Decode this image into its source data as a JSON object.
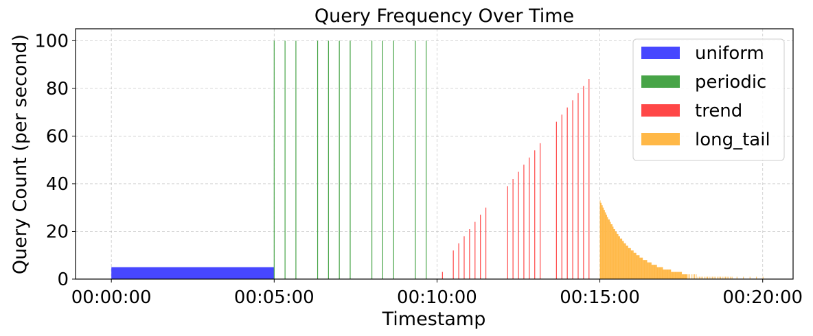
{
  "chart_data": {
    "type": "bar",
    "title": "Query Frequency Over Time",
    "xlabel": "Timestamp",
    "ylabel": "Query Count (per second)",
    "xlim": [
      "23:58:54",
      "00:20:56"
    ],
    "ylim": [
      0,
      105
    ],
    "x_ticks": [
      "00:00:00",
      "00:05:00",
      "00:10:00",
      "00:15:00",
      "00:20:00"
    ],
    "y_ticks": [
      0,
      20,
      40,
      60,
      80,
      100
    ],
    "grid": true,
    "legend_position": "top-right",
    "series": [
      {
        "name": "uniform",
        "color": "#4747ff",
        "range": [
          "00:00:00",
          "00:05:00"
        ],
        "value": 5
      },
      {
        "name": "periodic",
        "color": "#47a447",
        "points": [
          {
            "t": "00:05:00",
            "v": 100
          },
          {
            "t": "00:05:20",
            "v": 100
          },
          {
            "t": "00:05:40",
            "v": 100
          },
          {
            "t": "00:06:20",
            "v": 100
          },
          {
            "t": "00:06:40",
            "v": 100
          },
          {
            "t": "00:07:00",
            "v": 100
          },
          {
            "t": "00:07:20",
            "v": 100
          },
          {
            "t": "00:08:00",
            "v": 100
          },
          {
            "t": "00:08:20",
            "v": 100
          },
          {
            "t": "00:08:40",
            "v": 100
          },
          {
            "t": "00:09:20",
            "v": 100
          },
          {
            "t": "00:09:40",
            "v": 100
          }
        ]
      },
      {
        "name": "trend",
        "color": "#ff4747",
        "points": [
          {
            "t": "00:10:10",
            "v": 3
          },
          {
            "t": "00:10:30",
            "v": 12
          },
          {
            "t": "00:10:40",
            "v": 15
          },
          {
            "t": "00:10:50",
            "v": 18
          },
          {
            "t": "00:11:00",
            "v": 21
          },
          {
            "t": "00:11:10",
            "v": 24
          },
          {
            "t": "00:11:20",
            "v": 27
          },
          {
            "t": "00:11:30",
            "v": 30
          },
          {
            "t": "00:12:10",
            "v": 39
          },
          {
            "t": "00:12:20",
            "v": 42
          },
          {
            "t": "00:12:30",
            "v": 45
          },
          {
            "t": "00:12:40",
            "v": 48
          },
          {
            "t": "00:12:50",
            "v": 51
          },
          {
            "t": "00:13:00",
            "v": 54
          },
          {
            "t": "00:13:10",
            "v": 57
          },
          {
            "t": "00:13:40",
            "v": 66
          },
          {
            "t": "00:13:50",
            "v": 69
          },
          {
            "t": "00:14:00",
            "v": 72
          },
          {
            "t": "00:14:10",
            "v": 75
          },
          {
            "t": "00:14:20",
            "v": 78
          },
          {
            "t": "00:14:30",
            "v": 81
          },
          {
            "t": "00:14:40",
            "v": 84
          }
        ]
      },
      {
        "name": "long_tail",
        "color": "#ffb847",
        "start": "00:15:00",
        "end": "00:20:00",
        "peak": 33,
        "decay_per_second": 0.0172,
        "sparse_after": "00:17:40",
        "min_value": 1
      }
    ]
  }
}
